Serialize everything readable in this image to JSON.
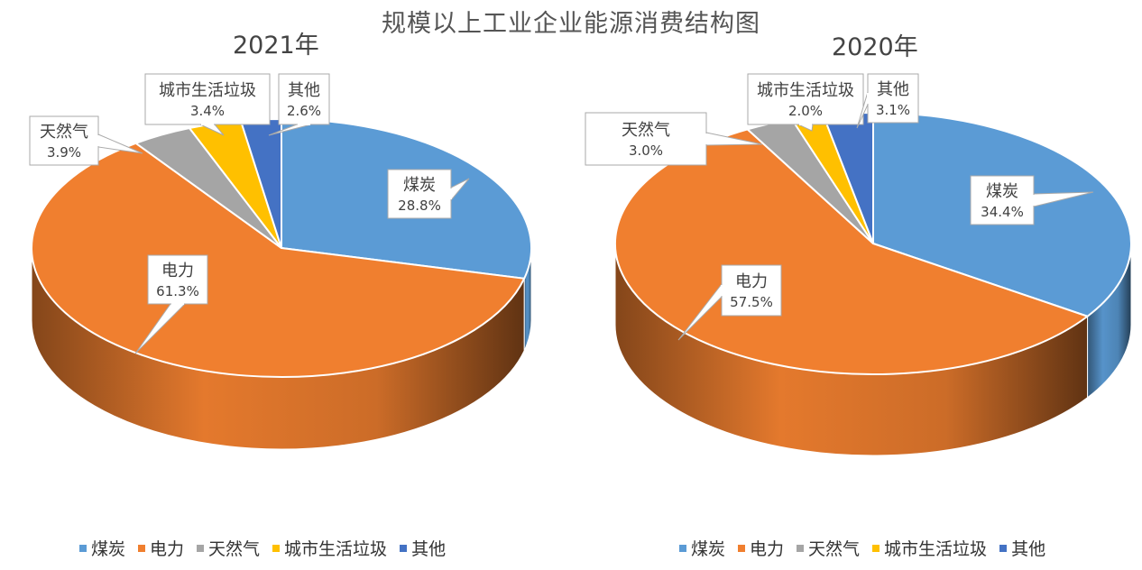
{
  "title": "规模以上工业企业能源消费结构图",
  "chart_data": [
    {
      "type": "pie",
      "title": "2021年",
      "labels": [
        "煤炭",
        "电力",
        "天然气",
        "城市生活垃圾",
        "其他"
      ],
      "values": [
        28.8,
        61.3,
        3.9,
        3.4,
        2.6
      ],
      "value_labels": [
        "28.8%",
        "61.3%",
        "3.9%",
        "3.4%",
        "2.6%"
      ],
      "colors": [
        "#5B9BD5",
        "#F07F2F",
        "#A5A5A5",
        "#FFC000",
        "#4472C4"
      ],
      "legend": "bottom"
    },
    {
      "type": "pie",
      "title": "2020年",
      "labels": [
        "煤炭",
        "电力",
        "天然气",
        "城市生活垃圾",
        "其他"
      ],
      "values": [
        34.4,
        57.5,
        3.0,
        2.0,
        3.1
      ],
      "value_labels": [
        "34.4%",
        "57.5%",
        "3.0%",
        "2.0%",
        "3.1%"
      ],
      "colors": [
        "#5B9BD5",
        "#F07F2F",
        "#A5A5A5",
        "#FFC000",
        "#4472C4"
      ],
      "legend": "bottom"
    }
  ]
}
